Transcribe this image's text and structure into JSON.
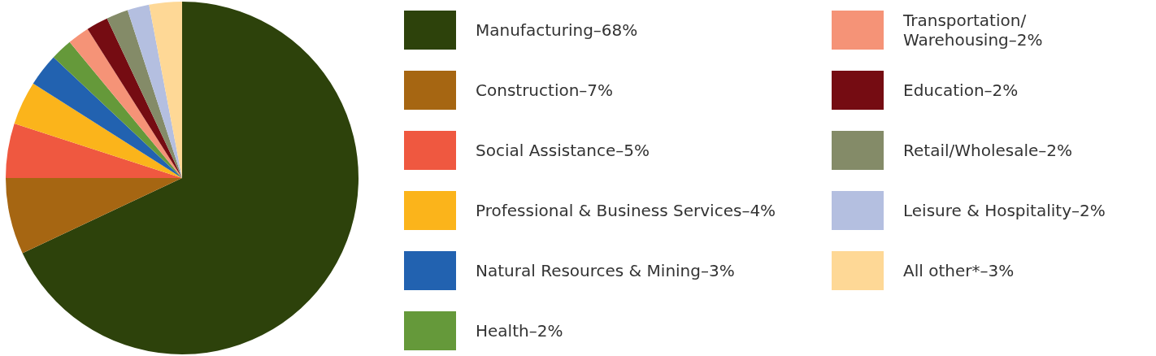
{
  "chart_data": {
    "type": "pie",
    "categories": [
      "Manufacturing–68%",
      "Construction–7%",
      "Social Assistance–5%",
      "Professional & Business Services–4%",
      "Natural Resources & Mining–3%",
      "Health–2%",
      "Transportation/\nWarehousing–2%",
      "Education–2%",
      "Retail/Wholesale–2%",
      "Leisure & Hospitality–2%",
      "All other*–3%"
    ],
    "values": [
      68,
      7,
      5,
      4,
      3,
      2,
      2,
      2,
      2,
      2,
      3
    ],
    "colors": [
      "#2d420b",
      "#a66612",
      "#ef5840",
      "#fbb41b",
      "#2262b0",
      "#65993a",
      "#f59377",
      "#750c12",
      "#848b68",
      "#b4bfe0",
      "#fed896"
    ],
    "legend": "right"
  }
}
